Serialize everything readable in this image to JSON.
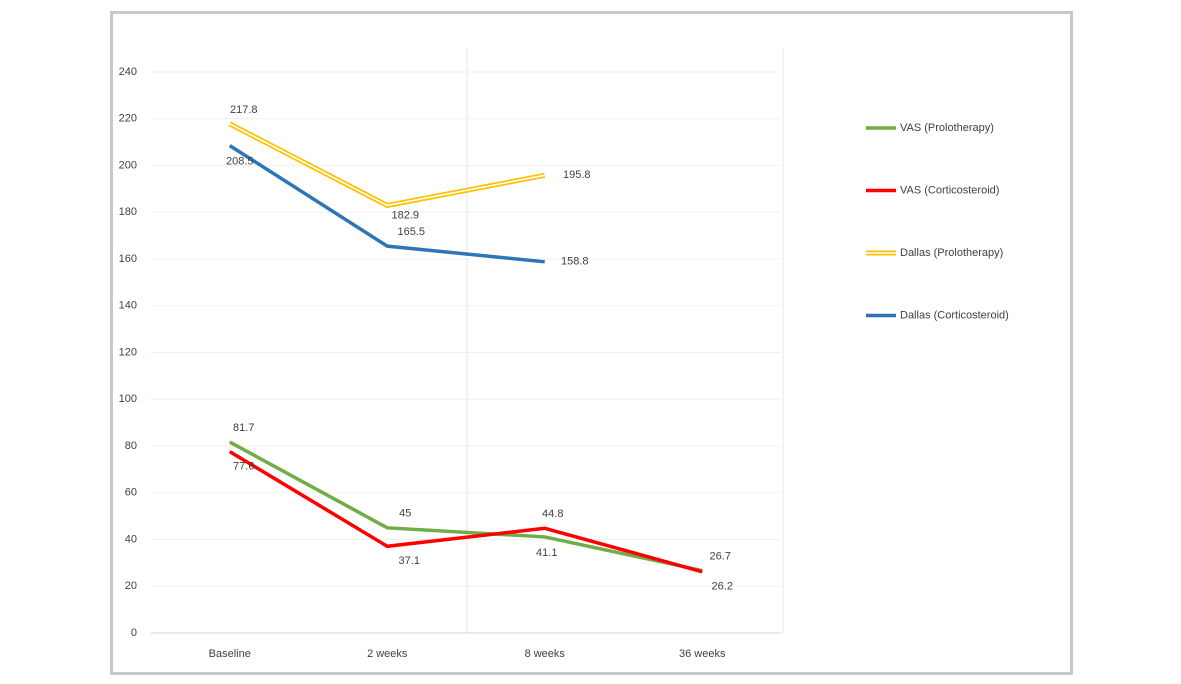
{
  "chart_data": {
    "type": "line",
    "categories": [
      "Baseline",
      "2 weeks",
      "8 weeks",
      "36 weeks"
    ],
    "series": [
      {
        "name": "VAS (Prolotherapy)",
        "color": "#70ad47",
        "values": [
          81.7,
          45,
          41.1,
          26.7
        ]
      },
      {
        "name": "VAS (Corticosteroid)",
        "color": "#ff0000",
        "values": [
          77.6,
          37.1,
          44.8,
          26.2
        ]
      },
      {
        "name": "Dallas (Prolotherapy)",
        "color": "#ffc000",
        "style": "double",
        "values": [
          217.8,
          182.9,
          195.8,
          null
        ]
      },
      {
        "name": "Dallas (Corticosteroid)",
        "color": "#2e75b6",
        "values": [
          208.5,
          165.5,
          158.8,
          null
        ]
      }
    ],
    "ylim": [
      0,
      240
    ],
    "yticks": [
      0,
      20,
      40,
      60,
      80,
      100,
      120,
      140,
      160,
      180,
      200,
      220,
      240
    ],
    "grid": true,
    "legend": "right"
  }
}
